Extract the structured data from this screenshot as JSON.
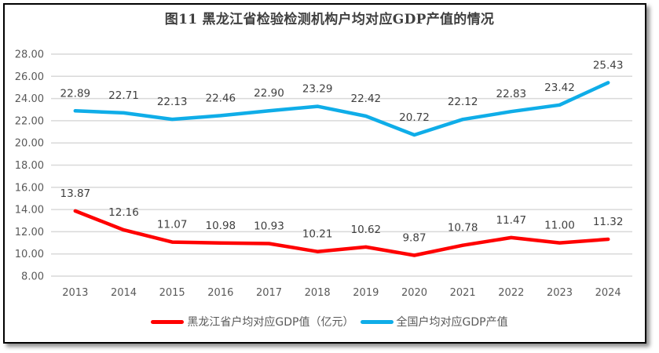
{
  "chart_data": {
    "type": "line",
    "title": "图11 黑龙江省检验检测机构户均对应GDP产值的情况",
    "xlabel": "",
    "ylabel": "",
    "categories": [
      "2013",
      "2014",
      "2015",
      "2016",
      "2017",
      "2018",
      "2019",
      "2020",
      "2021",
      "2022",
      "2023",
      "2024"
    ],
    "ylim": [
      8,
      28
    ],
    "yticks": [
      "8.00",
      "10.00",
      "12.00",
      "14.00",
      "16.00",
      "18.00",
      "20.00",
      "22.00",
      "24.00",
      "26.00",
      "28.00"
    ],
    "grid": true,
    "legend_position": "bottom",
    "series": [
      {
        "name": "黑龙江省户均对应GDP值（亿元）",
        "color": "#FF0000",
        "values": [
          13.87,
          12.16,
          11.07,
          10.98,
          10.93,
          10.21,
          10.62,
          9.87,
          10.78,
          11.47,
          11.0,
          11.32
        ],
        "labels": [
          "13.87",
          "12.16",
          "11.07",
          "10.98",
          "10.93",
          "10.21",
          "10.62",
          "9.87",
          "10.78",
          "11.47",
          "11.00",
          "11.32"
        ]
      },
      {
        "name": "全国户均对应GDP产值",
        "color": "#0FADE8",
        "values": [
          22.89,
          22.71,
          22.13,
          22.46,
          22.9,
          23.29,
          22.42,
          20.72,
          22.12,
          22.83,
          23.42,
          25.43
        ],
        "labels": [
          "22.89",
          "22.71",
          "22.13",
          "22.46",
          "22.90",
          "23.29",
          "22.42",
          "20.72",
          "22.12",
          "22.83",
          "23.42",
          "25.43"
        ]
      }
    ]
  },
  "colors": {
    "grid": "#D9D9D9",
    "axis_text": "#595959",
    "label_text": "#404040"
  }
}
